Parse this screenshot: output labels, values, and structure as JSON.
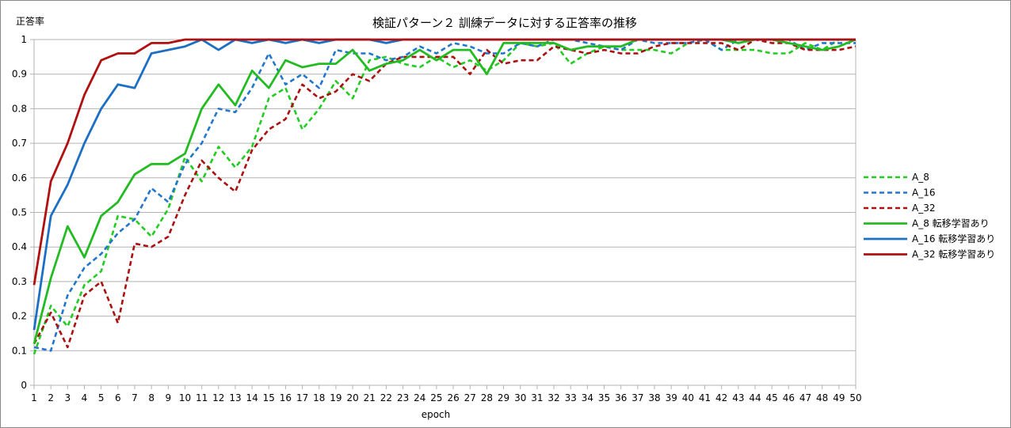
{
  "chart_data": {
    "type": "line",
    "title": "検証パターン２ 訓練データに対する正答率の推移",
    "xlabel": "epoch",
    "ylabel": "正答率",
    "ylim": [
      0,
      1
    ],
    "yticks": [
      "0",
      "0.1",
      "0.2",
      "0.3",
      "0.4",
      "0.5",
      "0.6",
      "0.7",
      "0.8",
      "0.9",
      "1"
    ],
    "grid": "horizontal",
    "legend_position": "right",
    "x": [
      1,
      2,
      3,
      4,
      5,
      6,
      7,
      8,
      9,
      10,
      11,
      12,
      13,
      14,
      15,
      16,
      17,
      18,
      19,
      20,
      21,
      22,
      23,
      24,
      25,
      26,
      27,
      28,
      29,
      30,
      31,
      32,
      33,
      34,
      35,
      36,
      37,
      38,
      39,
      40,
      41,
      42,
      43,
      44,
      45,
      46,
      47,
      48,
      49,
      50
    ],
    "series": [
      {
        "name": "A_8",
        "color": "#22cc22",
        "dash": true,
        "values": [
          0.09,
          0.23,
          0.17,
          0.29,
          0.33,
          0.49,
          0.48,
          0.43,
          0.51,
          0.66,
          0.59,
          0.69,
          0.63,
          0.69,
          0.83,
          0.86,
          0.74,
          0.8,
          0.88,
          0.83,
          0.94,
          0.95,
          0.93,
          0.92,
          0.95,
          0.92,
          0.94,
          0.91,
          0.94,
          0.99,
          0.98,
          0.99,
          0.93,
          0.96,
          0.98,
          0.97,
          0.97,
          0.97,
          0.96,
          0.99,
          1.0,
          0.97,
          0.97,
          0.97,
          0.96,
          0.96,
          0.99,
          0.97,
          1.0,
          1.0
        ]
      },
      {
        "name": "A_16",
        "color": "#2277cc",
        "dash": true,
        "values": [
          0.11,
          0.1,
          0.26,
          0.34,
          0.38,
          0.44,
          0.48,
          0.57,
          0.53,
          0.64,
          0.7,
          0.8,
          0.79,
          0.86,
          0.96,
          0.87,
          0.9,
          0.86,
          0.97,
          0.96,
          0.96,
          0.94,
          0.95,
          0.98,
          0.96,
          0.99,
          0.98,
          0.96,
          0.96,
          0.99,
          0.98,
          1.0,
          1.0,
          0.99,
          0.98,
          0.97,
          1.0,
          0.99,
          0.99,
          0.99,
          1.0,
          0.97,
          1.0,
          1.0,
          1.0,
          1.0,
          0.97,
          0.99,
          0.99,
          0.99
        ]
      },
      {
        "name": "A_32",
        "color": "#aa1111",
        "dash": true,
        "values": [
          0.12,
          0.21,
          0.11,
          0.26,
          0.3,
          0.18,
          0.41,
          0.4,
          0.43,
          0.55,
          0.65,
          0.6,
          0.56,
          0.68,
          0.74,
          0.77,
          0.87,
          0.83,
          0.85,
          0.9,
          0.88,
          0.93,
          0.95,
          0.95,
          0.95,
          0.95,
          0.9,
          0.97,
          0.93,
          0.94,
          0.94,
          0.98,
          0.97,
          0.96,
          0.97,
          0.96,
          0.96,
          0.98,
          0.99,
          0.99,
          0.99,
          0.99,
          0.97,
          1.0,
          0.99,
          0.99,
          0.97,
          0.97,
          0.97,
          0.98
        ]
      },
      {
        "name": "A_8 転移学習あり",
        "color": "#22bb22",
        "dash": false,
        "values": [
          0.12,
          0.31,
          0.46,
          0.37,
          0.49,
          0.53,
          0.61,
          0.64,
          0.64,
          0.67,
          0.8,
          0.87,
          0.81,
          0.91,
          0.86,
          0.94,
          0.92,
          0.93,
          0.93,
          0.97,
          0.91,
          0.93,
          0.94,
          0.97,
          0.94,
          0.97,
          0.97,
          0.9,
          0.99,
          0.99,
          0.99,
          0.99,
          0.97,
          0.98,
          0.98,
          0.98,
          1.0,
          1.0,
          1.0,
          1.0,
          1.0,
          1.0,
          0.99,
          1.0,
          1.0,
          0.99,
          0.98,
          0.97,
          0.98,
          1.0
        ]
      },
      {
        "name": "A_16 転移学習あり",
        "color": "#1b6fc4",
        "dash": false,
        "values": [
          0.16,
          0.49,
          0.58,
          0.7,
          0.8,
          0.87,
          0.86,
          0.96,
          0.97,
          0.98,
          1.0,
          0.97,
          1.0,
          0.99,
          1.0,
          0.99,
          1.0,
          0.99,
          1.0,
          1.0,
          1.0,
          0.99,
          1.0,
          1.0,
          1.0,
          1.0,
          1.0,
          1.0,
          1.0,
          1.0,
          1.0,
          1.0,
          1.0,
          1.0,
          1.0,
          1.0,
          1.0,
          1.0,
          1.0,
          1.0,
          1.0,
          1.0,
          1.0,
          1.0,
          1.0,
          1.0,
          1.0,
          1.0,
          1.0,
          1.0
        ]
      },
      {
        "name": "A_32 転移学習あり",
        "color": "#b01010",
        "dash": false,
        "values": [
          0.29,
          0.59,
          0.7,
          0.84,
          0.94,
          0.96,
          0.96,
          0.99,
          0.99,
          1.0,
          1.0,
          1.0,
          1.0,
          1.0,
          1.0,
          1.0,
          1.0,
          1.0,
          1.0,
          1.0,
          1.0,
          1.0,
          1.0,
          1.0,
          1.0,
          1.0,
          1.0,
          1.0,
          1.0,
          1.0,
          1.0,
          1.0,
          1.0,
          1.0,
          1.0,
          1.0,
          1.0,
          1.0,
          1.0,
          1.0,
          1.0,
          1.0,
          1.0,
          1.0,
          1.0,
          1.0,
          1.0,
          1.0,
          1.0,
          1.0
        ]
      }
    ]
  }
}
